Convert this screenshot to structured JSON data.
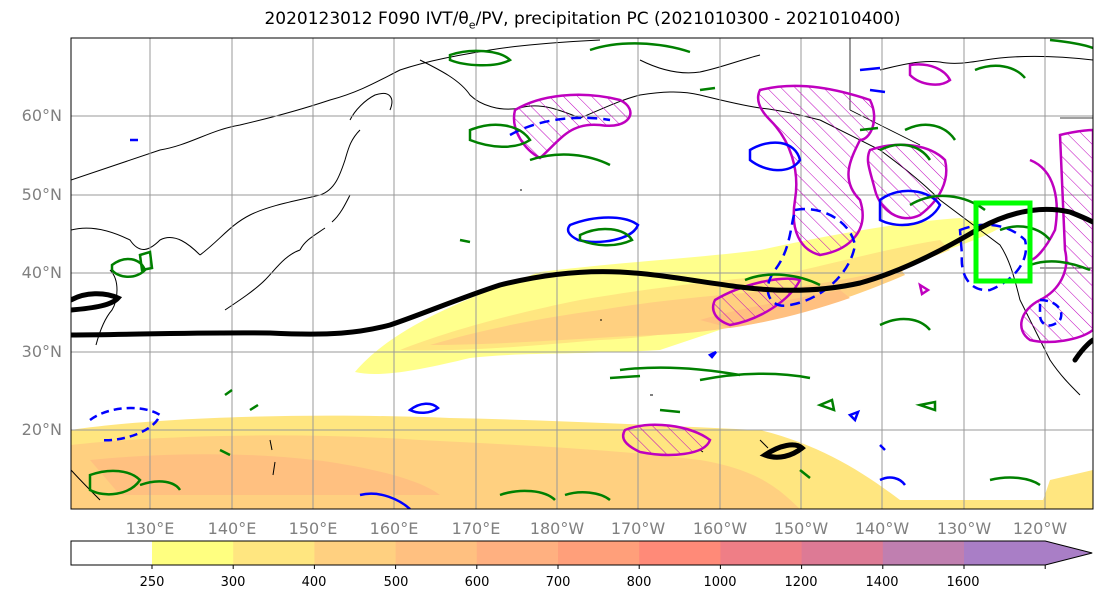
{
  "title": {
    "prefix": "2020123012 F090 IVT/",
    "theta": "θ",
    "theta_sub": "e",
    "suffix": "/PV, precipitation PC (2021010300 - 2021010400)"
  },
  "map": {
    "lat_labels": [
      "60°N",
      "50°N",
      "40°N",
      "30°N",
      "20°N"
    ],
    "lon_labels": [
      "130°E",
      "140°E",
      "150°E",
      "160°E",
      "170°E",
      "180°W",
      "170°W",
      "160°W",
      "150°W",
      "140°W",
      "130°W",
      "120°W"
    ],
    "target_box_color": "#00ff00",
    "ivt_contour_color": "#000000",
    "pv_positive_color": "#008000",
    "pv_negative_color": "#0000ff",
    "precip_color": "#bf00bf"
  },
  "colorbar": {
    "ticks": [
      "250",
      "300",
      "400",
      "500",
      "600",
      "700",
      "800",
      "1000",
      "1200",
      "1400",
      "1600"
    ],
    "colors": [
      "#ffff80",
      "#ffe680",
      "#ffd080",
      "#ffc080",
      "#ffb080",
      "#ff9f7a",
      "#ff8a78",
      "#ef7e86",
      "#dd7a95",
      "#c07fb0",
      "#a97ec6"
    ]
  }
}
